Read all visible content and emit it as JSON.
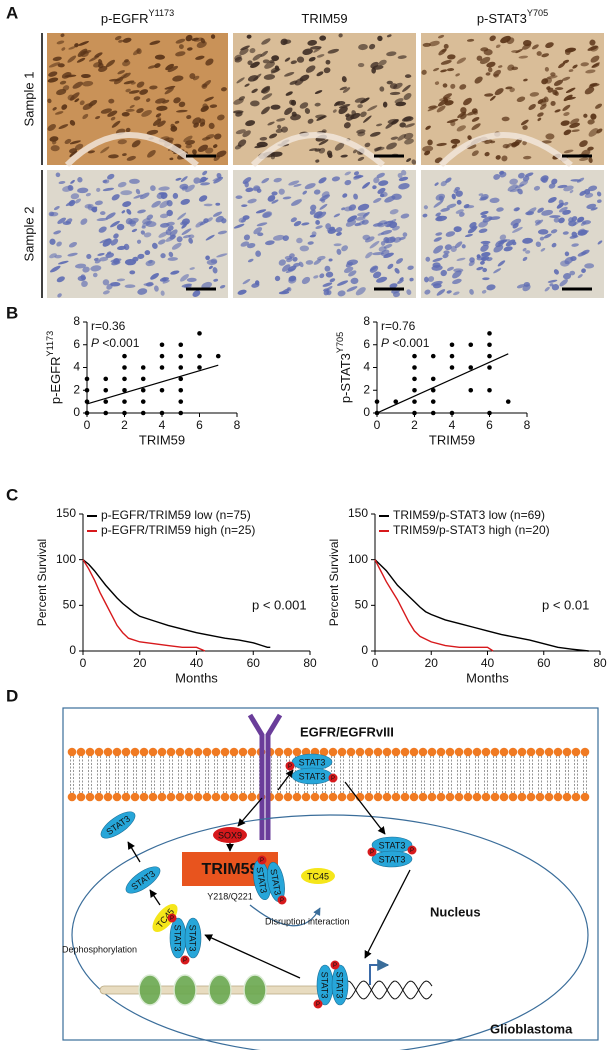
{
  "panels": [
    {
      "letter": "A"
    },
    {
      "letter": "B"
    },
    {
      "letter": "C"
    },
    {
      "letter": "D"
    }
  ],
  "staining": {
    "columns": [
      {
        "text": "p-EGFR",
        "sup": "Y1173"
      },
      {
        "text": "TRIM59"
      },
      {
        "text": "p-STAT3",
        "sup": "Y705"
      }
    ],
    "rows": [
      "Sample 1",
      "Sample 2"
    ]
  },
  "chart_data": [
    {
      "type": "scatter",
      "annotation": "r=0.36",
      "p_symbol": "P",
      "p_text": " <0.001",
      "xlabel": "TRIM59",
      "ylabel": "p-EGFR",
      "ylabel_sup": "Y1173",
      "color": "#000000",
      "x": [
        0,
        0,
        0,
        0,
        1,
        1,
        1,
        1,
        2,
        2,
        2,
        2,
        2,
        2,
        3,
        3,
        3,
        3,
        3,
        4,
        4,
        4,
        4,
        4,
        5,
        5,
        5,
        5,
        5,
        5,
        5,
        6,
        6,
        6,
        7
      ],
      "values": [
        0,
        1,
        2,
        3,
        0,
        1,
        2,
        3,
        0,
        1,
        2,
        3,
        4,
        5,
        0,
        1,
        2,
        3,
        4,
        0,
        2,
        4,
        5,
        6,
        0,
        1,
        2,
        3,
        4,
        5,
        6,
        4,
        5,
        7,
        5
      ],
      "trend": {
        "x": [
          0,
          7
        ],
        "values": [
          0.8,
          4.2
        ]
      },
      "xlim": [
        0,
        8
      ],
      "ylim": [
        0,
        8
      ],
      "xticks": [
        0,
        2,
        4,
        6,
        8
      ],
      "yticks": [
        0,
        2,
        4,
        6,
        8
      ]
    },
    {
      "type": "scatter",
      "annotation": "r=0.76",
      "p_symbol": "P",
      "p_text": " <0.001",
      "xlabel": "TRIM59",
      "ylabel": "p-STAT3",
      "ylabel_sup": "Y705",
      "color": "#000000",
      "x": [
        0,
        0,
        1,
        2,
        2,
        2,
        2,
        2,
        2,
        3,
        3,
        3,
        3,
        3,
        4,
        4,
        4,
        4,
        5,
        5,
        5,
        6,
        6,
        6,
        6,
        6,
        6,
        7
      ],
      "values": [
        0,
        1,
        1,
        0,
        1,
        2,
        3,
        4,
        5,
        0,
        1,
        2,
        3,
        5,
        0,
        4,
        5,
        6,
        2,
        4,
        6,
        0,
        2,
        4,
        5,
        6,
        7,
        1
      ],
      "trend": {
        "x": [
          0,
          7
        ],
        "values": [
          0,
          5.2
        ]
      },
      "xlim": [
        0,
        8
      ],
      "ylim": [
        0,
        8
      ],
      "xticks": [
        0,
        2,
        4,
        6,
        8
      ],
      "yticks": [
        0,
        2,
        4,
        6,
        8
      ]
    },
    {
      "type": "line",
      "xlabel": "Months",
      "ylabel": "Percent Survival",
      "annotation": "p < 0.001",
      "series": [
        {
          "name": "p-EGFR/TRIM59 low (n=75)",
          "color": "#000000",
          "x": [
            0,
            2,
            4,
            6,
            8,
            10,
            12,
            14,
            16,
            18,
            20,
            25,
            30,
            35,
            40,
            45,
            50,
            55,
            60,
            63,
            65,
            66
          ],
          "values": [
            100,
            95,
            88,
            80,
            72,
            65,
            58,
            52,
            47,
            42,
            38,
            33,
            28,
            24,
            20,
            17,
            14,
            12,
            9,
            6,
            4,
            4
          ]
        },
        {
          "name": "p-EGFR/TRIM59 high (n=25)",
          "color": "#d7191c",
          "x": [
            0,
            2,
            4,
            6,
            8,
            10,
            12,
            14,
            16,
            20,
            25,
            30,
            35,
            40,
            43
          ],
          "values": [
            100,
            90,
            78,
            64,
            52,
            40,
            28,
            20,
            14,
            10,
            8,
            6,
            4,
            4,
            0
          ]
        }
      ],
      "xlim": [
        0,
        80
      ],
      "ylim": [
        0,
        150
      ],
      "xticks": [
        0,
        20,
        40,
        60,
        80
      ],
      "yticks": [
        0,
        50,
        100,
        150
      ]
    },
    {
      "type": "line",
      "xlabel": "Months",
      "ylabel": "Percent Survival",
      "annotation": "p < 0.01",
      "series": [
        {
          "name": "TRIM59/p-STAT3 low (n=69)",
          "color": "#000000",
          "x": [
            0,
            2,
            4,
            6,
            8,
            10,
            12,
            14,
            16,
            18,
            20,
            25,
            30,
            35,
            40,
            45,
            50,
            55,
            60,
            65,
            70,
            76
          ],
          "values": [
            100,
            94,
            88,
            80,
            72,
            66,
            60,
            54,
            48,
            43,
            40,
            34,
            30,
            26,
            22,
            18,
            15,
            12,
            8,
            4,
            2,
            0
          ]
        },
        {
          "name": "TRIM59/p-STAT3 high (n=20)",
          "color": "#d7191c",
          "x": [
            0,
            2,
            4,
            6,
            8,
            10,
            12,
            14,
            16,
            20,
            25,
            30,
            35,
            40,
            42
          ],
          "values": [
            100,
            88,
            76,
            66,
            56,
            44,
            32,
            22,
            16,
            10,
            6,
            4,
            4,
            4,
            0
          ]
        }
      ],
      "xlim": [
        0,
        80
      ],
      "ylim": [
        0,
        150
      ],
      "xticks": [
        0,
        20,
        40,
        60,
        80
      ],
      "yticks": [
        0,
        50,
        100,
        150
      ]
    }
  ],
  "diagram": {
    "receptor": "EGFR/EGFRvIII",
    "sox9": "SOX9",
    "trim59": "TRIM59",
    "site": "Y218/Q221",
    "tc45": [
      "TC45",
      "TC45"
    ],
    "disruption": "Disruption interaction",
    "dephosphorylation": "Dephosphorylation",
    "nucleus": "Nucleus",
    "cell": "Glioblastoma",
    "stat3": [
      "STAT3",
      "STAT3",
      "STAT3",
      "STAT3",
      "STAT3",
      "STAT3",
      "STAT3",
      "STAT3",
      "STAT3",
      "STAT3",
      "STAT3",
      "STAT3"
    ],
    "phospho": [
      "P",
      "P",
      "P",
      "P",
      "P",
      "P",
      "P",
      "P",
      "P",
      "P"
    ]
  }
}
